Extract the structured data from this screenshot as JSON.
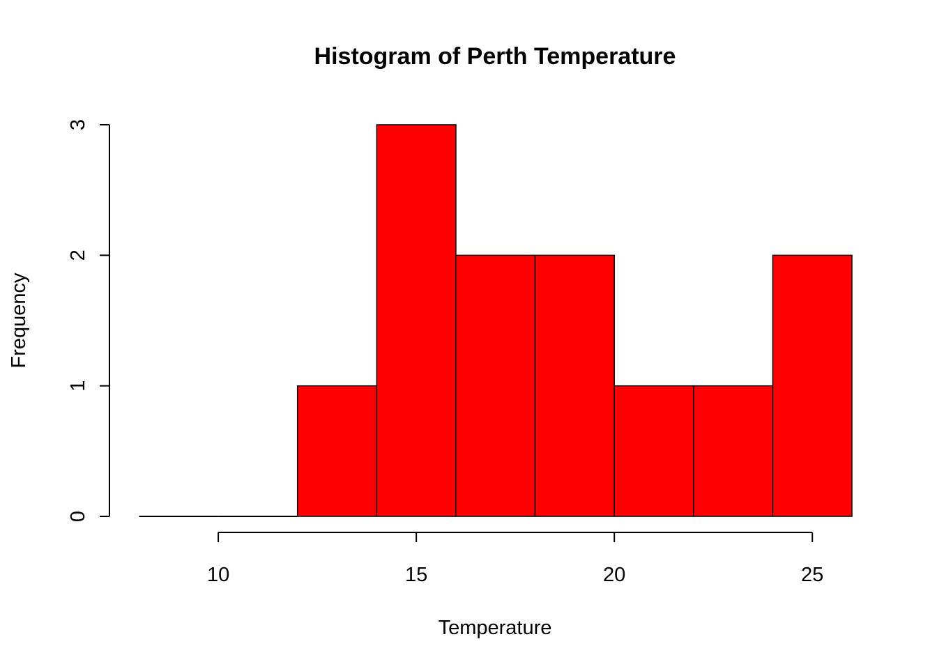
{
  "chart_data": {
    "type": "bar",
    "title": "Histogram of Perth Temperature",
    "xlabel": "Temperature",
    "ylabel": "Frequency",
    "bins": [
      {
        "start": 8,
        "end": 10,
        "count": 0
      },
      {
        "start": 10,
        "end": 12,
        "count": 0
      },
      {
        "start": 12,
        "end": 14,
        "count": 1
      },
      {
        "start": 14,
        "end": 16,
        "count": 3
      },
      {
        "start": 16,
        "end": 18,
        "count": 2
      },
      {
        "start": 18,
        "end": 20,
        "count": 2
      },
      {
        "start": 20,
        "end": 22,
        "count": 1
      },
      {
        "start": 22,
        "end": 24,
        "count": 1
      },
      {
        "start": 24,
        "end": 26,
        "count": 2
      }
    ],
    "x_ticks": [
      "10",
      "15",
      "20",
      "25"
    ],
    "y_ticks": [
      "0",
      "1",
      "2",
      "3"
    ],
    "xlim": [
      8,
      26
    ],
    "ylim": [
      0,
      3
    ],
    "bar_color": "#ff0000",
    "outline_color": "#000000",
    "grid": false,
    "legend": "none"
  }
}
